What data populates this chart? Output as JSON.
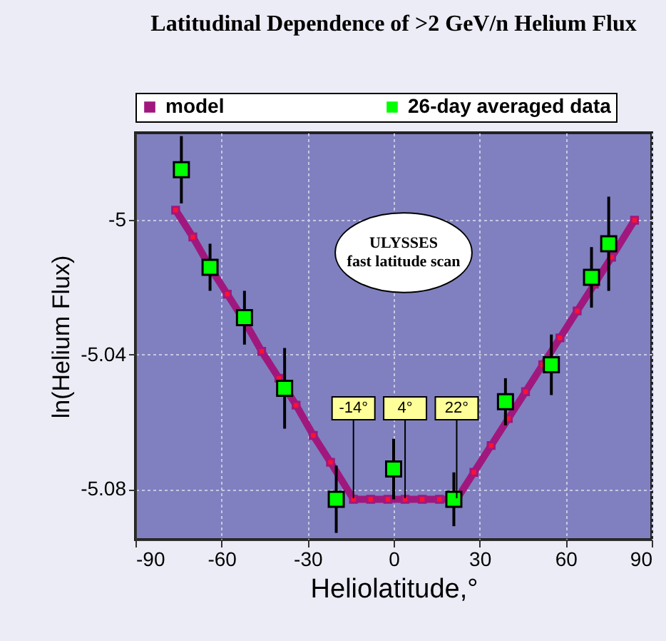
{
  "chart_data": {
    "type": "line",
    "title": "Latitudinal Dependence of >2 GeV/n Helium Flux",
    "xlabel": "Heliolatitude,°",
    "ylabel": "ln(Helium Flux)",
    "xlim": [
      -90,
      90
    ],
    "xticks": [
      -90,
      -60,
      -30,
      0,
      30,
      60,
      90
    ],
    "ylim": [
      -5.095,
      -4.974
    ],
    "yticks": [
      -5,
      -5.04,
      -5.08
    ],
    "grid": true,
    "legend": "top",
    "marker": "square",
    "series": [
      {
        "name": "model",
        "color": "#a0187e",
        "x": [
          -76,
          -70,
          -64,
          -58,
          -52,
          -46,
          -40,
          -34,
          -28,
          -22,
          -14,
          -8,
          -2,
          4,
          10,
          16,
          22,
          28,
          34,
          40,
          46,
          52,
          58,
          64,
          70,
          76,
          84
        ],
        "values": [
          -4.997,
          -5.005,
          -5.014,
          -5.022,
          -5.03,
          -5.039,
          -5.047,
          -5.055,
          -5.064,
          -5.072,
          -5.083,
          -5.083,
          -5.083,
          -5.083,
          -5.083,
          -5.083,
          -5.083,
          -5.075,
          -5.067,
          -5.059,
          -5.051,
          -5.043,
          -5.035,
          -5.027,
          -5.019,
          -5.011,
          -5
        ]
      },
      {
        "name": "26-day averaged data",
        "type": "scatter",
        "color": "#00ff00",
        "x": [
          -74,
          -64,
          -52,
          -38,
          -20,
          0,
          21,
          39,
          55,
          69,
          75
        ],
        "values": [
          -4.985,
          -5.014,
          -5.029,
          -5.05,
          -5.083,
          -5.074,
          -5.083,
          -5.054,
          -5.043,
          -5.017,
          -5.007
        ],
        "errors": [
          0.01,
          0.007,
          0.008,
          0.012,
          0.01,
          0.009,
          0.008,
          0.007,
          0.009,
          0.009,
          0.014
        ]
      }
    ],
    "ref_lines": [
      {
        "axis": "x",
        "value": -14,
        "label": "-14°"
      },
      {
        "axis": "x",
        "value": 4,
        "label": "4°"
      },
      {
        "axis": "x",
        "value": 22,
        "label": "22°"
      }
    ],
    "annotations": [
      "ULYSSES",
      "fast latitude scan"
    ]
  }
}
